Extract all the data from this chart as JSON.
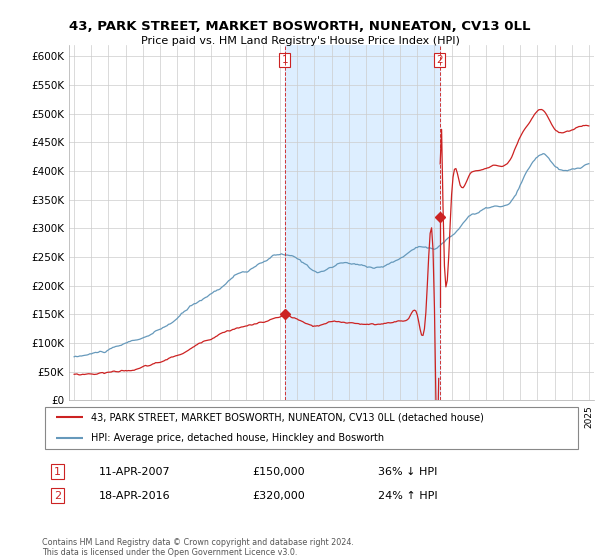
{
  "title": "43, PARK STREET, MARKET BOSWORTH, NUNEATON, CV13 0LL",
  "subtitle": "Price paid vs. HM Land Registry's House Price Index (HPI)",
  "ylim": [
    0,
    620000
  ],
  "yticks": [
    0,
    50000,
    100000,
    150000,
    200000,
    250000,
    300000,
    350000,
    400000,
    450000,
    500000,
    550000,
    600000
  ],
  "ytick_labels": [
    "£0",
    "£50K",
    "£100K",
    "£150K",
    "£200K",
    "£250K",
    "£300K",
    "£350K",
    "£400K",
    "£450K",
    "£500K",
    "£550K",
    "£600K"
  ],
  "plot_bg_color": "#ffffff",
  "grid_color": "#cccccc",
  "highlight_color": "#ddeeff",
  "red_color": "#cc2222",
  "blue_color": "#6699bb",
  "sale1_x": 2007.28,
  "sale1_y": 150000,
  "sale2_x": 2016.3,
  "sale2_y": 320000,
  "legend_line1": "43, PARK STREET, MARKET BOSWORTH, NUNEATON, CV13 0LL (detached house)",
  "legend_line2": "HPI: Average price, detached house, Hinckley and Bosworth",
  "sale1_date": "11-APR-2007",
  "sale1_price": "£150,000",
  "sale1_pct": "36% ↓ HPI",
  "sale2_date": "18-APR-2016",
  "sale2_price": "£320,000",
  "sale2_pct": "24% ↑ HPI",
  "footer": "Contains HM Land Registry data © Crown copyright and database right 2024.\nThis data is licensed under the Open Government Licence v3.0.",
  "xmin": 1994.7,
  "xmax": 2025.3
}
